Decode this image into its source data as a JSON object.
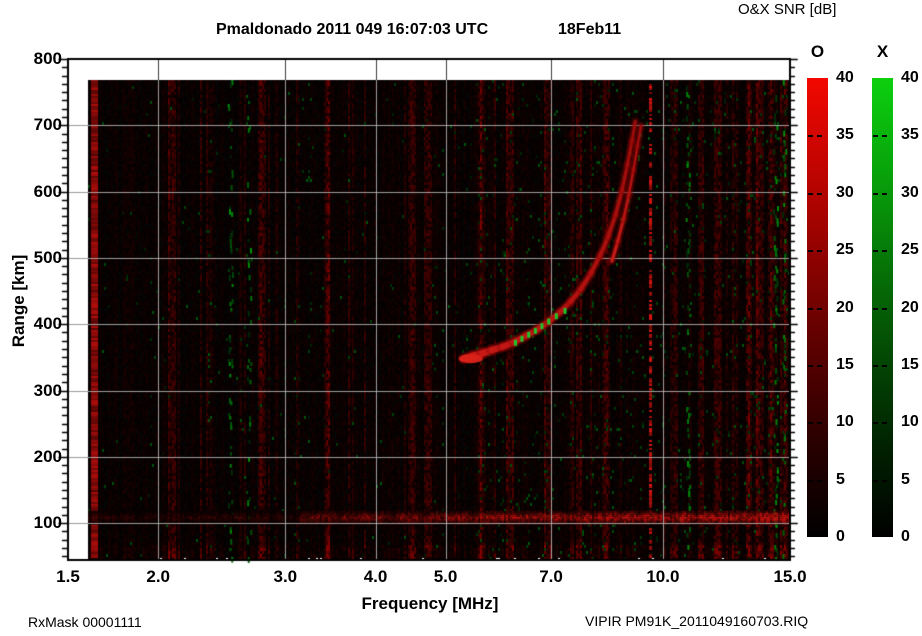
{
  "chart_data": {
    "type": "heatmap",
    "title": "Pmaldonado 2011 049 16:07:03 UTC",
    "subtitle": "18Feb11",
    "colorbar_title": "O&X SNR [dB]",
    "xlabel": "Frequency [MHz]",
    "ylabel": "Range [km]",
    "x_scale": "log",
    "x_range_mhz": [
      1.5,
      15.0
    ],
    "y_range_km": [
      44,
      800
    ],
    "y_minor_step_km": 12.5,
    "grid": true,
    "background": "#050404",
    "x_ticks": [
      {
        "value": 1.5,
        "label": "1.5"
      },
      {
        "value": 2.0,
        "label": "2.0"
      },
      {
        "value": 3.0,
        "label": "3.0"
      },
      {
        "value": 4.0,
        "label": "4.0"
      },
      {
        "value": 5.0,
        "label": "5.0"
      },
      {
        "value": 7.0,
        "label": "7.0"
      },
      {
        "value": 10.0,
        "label": "10.0"
      },
      {
        "value": 15.0,
        "label": "15.0"
      }
    ],
    "y_ticks": [
      {
        "value": 100,
        "label": "100"
      },
      {
        "value": 200,
        "label": "200"
      },
      {
        "value": 300,
        "label": "300"
      },
      {
        "value": 400,
        "label": "400"
      },
      {
        "value": 500,
        "label": "500"
      },
      {
        "value": 600,
        "label": "600"
      },
      {
        "value": 700,
        "label": "700"
      },
      {
        "value": 800,
        "label": "800"
      }
    ],
    "colorbars": [
      {
        "name": "O",
        "min": 0,
        "max": 40,
        "ticks": [
          40,
          35,
          30,
          25,
          20,
          15,
          10,
          5,
          0
        ],
        "gradient": [
          "#f20800",
          "#c00400",
          "#8c0200",
          "#580100",
          "#280000",
          "#000000"
        ]
      },
      {
        "name": "X",
        "min": 0,
        "max": 40,
        "ticks": [
          40,
          35,
          30,
          25,
          20,
          15,
          10,
          5,
          0
        ],
        "gradient": [
          "#0cd00e",
          "#08a40b",
          "#067607",
          "#034a04",
          "#012201",
          "#000000"
        ]
      }
    ],
    "traces": {
      "o_trace_mhz_km": [
        [
          5.3,
          348
        ],
        [
          5.45,
          352
        ],
        [
          5.62,
          356
        ],
        [
          5.8,
          361
        ],
        [
          6.0,
          366
        ],
        [
          6.22,
          373
        ],
        [
          6.45,
          382
        ],
        [
          6.7,
          392
        ],
        [
          6.95,
          404
        ],
        [
          7.2,
          418
        ],
        [
          7.45,
          434
        ],
        [
          7.7,
          453
        ],
        [
          7.95,
          477
        ],
        [
          8.18,
          503
        ],
        [
          8.4,
          532
        ],
        [
          8.6,
          565
        ],
        [
          8.78,
          602
        ],
        [
          8.93,
          640
        ],
        [
          9.06,
          676
        ],
        [
          9.16,
          706
        ]
      ],
      "x_trace_mhz_km": [
        [
          8.5,
          495
        ],
        [
          8.66,
          525
        ],
        [
          8.82,
          558
        ],
        [
          8.97,
          595
        ],
        [
          9.1,
          632
        ],
        [
          9.22,
          668
        ],
        [
          9.33,
          700
        ]
      ],
      "green_marks_mhz_km": [
        [
          6.25,
          372
        ],
        [
          6.38,
          378
        ],
        [
          6.52,
          384
        ],
        [
          6.66,
          390
        ],
        [
          6.8,
          397
        ],
        [
          6.95,
          404
        ],
        [
          7.12,
          412
        ],
        [
          7.32,
          420
        ]
      ]
    },
    "features": {
      "e_region_band_km": 108,
      "red_interference_mhz": [
        1.63,
        9.6
      ],
      "green_interference_mhz": [
        2.52,
        2.68,
        10.85,
        14.35,
        14.75
      ],
      "red_noise_columns_mhz": [
        2.08,
        2.78,
        3.42,
        4.48,
        4.72,
        5.58,
        6.12,
        6.92,
        7.62,
        8.32,
        10.32,
        11.25,
        11.9,
        12.55,
        13.1,
        13.6,
        14.1,
        14.65
      ]
    },
    "footer_left": "RxMask 00001111",
    "footer_right": "VIPIR  PM91K_2011049160703.RIQ"
  }
}
